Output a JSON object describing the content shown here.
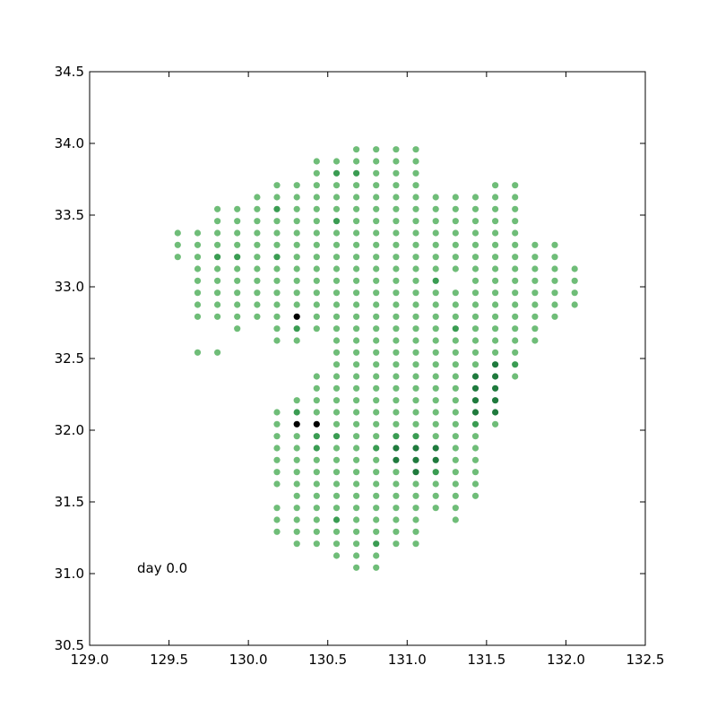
{
  "chart_data": {
    "type": "scatter",
    "title": "",
    "xlabel": "",
    "ylabel": "",
    "xlim": [
      129.0,
      132.5
    ],
    "ylim": [
      30.5,
      34.5
    ],
    "xticks": [
      "129.0",
      "129.5",
      "130.0",
      "130.5",
      "131.0",
      "131.5",
      "132.0",
      "132.5"
    ],
    "yticks": [
      "30.5",
      "31.0",
      "31.5",
      "32.0",
      "32.5",
      "33.0",
      "33.5",
      "34.0",
      "34.5"
    ],
    "grid": false,
    "annotation": "day 0.0",
    "colors": {
      "light": "#6fbd78",
      "medium": "#3a9c52",
      "dark": "#1f7a3d",
      "black": "#000000"
    },
    "columns": [
      {
        "x": 129.555,
        "ys": [
          33.375,
          33.292,
          33.208
        ]
      },
      {
        "x": 129.68,
        "ys": [
          33.375,
          33.292,
          33.208,
          33.125,
          33.042,
          32.958,
          32.875,
          32.792,
          32.542
        ]
      },
      {
        "x": 129.805,
        "ys": [
          33.542,
          33.458,
          33.375,
          33.292,
          33.208,
          33.125,
          33.042,
          32.958,
          32.875,
          32.792,
          32.542
        ]
      },
      {
        "x": 129.93,
        "ys": [
          33.542,
          33.458,
          33.375,
          33.292,
          33.208,
          33.125,
          33.042,
          32.958,
          32.875,
          32.792,
          32.708
        ]
      },
      {
        "x": 130.055,
        "ys": [
          33.625,
          33.542,
          33.458,
          33.375,
          33.292,
          33.208,
          33.125,
          33.042,
          32.958,
          32.875,
          32.792
        ]
      },
      {
        "x": 130.18,
        "ys": [
          33.708,
          33.625,
          33.542,
          33.458,
          33.375,
          33.292,
          33.208,
          33.125,
          33.042,
          32.958,
          32.875,
          32.792,
          32.708,
          32.625,
          32.125,
          32.042,
          31.958,
          31.875,
          31.792,
          31.708,
          31.625,
          31.458,
          31.375,
          31.292
        ]
      },
      {
        "x": 130.305,
        "ys": [
          33.708,
          33.625,
          33.542,
          33.458,
          33.375,
          33.292,
          33.208,
          33.125,
          33.042,
          32.958,
          32.875,
          32.792,
          32.708,
          32.625,
          32.208,
          32.125,
          32.042,
          31.958,
          31.875,
          31.792,
          31.708,
          31.625,
          31.542,
          31.458,
          31.375,
          31.292,
          31.208
        ]
      },
      {
        "x": 130.43,
        "ys": [
          33.875,
          33.792,
          33.708,
          33.625,
          33.542,
          33.458,
          33.375,
          33.292,
          33.208,
          33.125,
          33.042,
          32.958,
          32.875,
          32.792,
          32.708,
          32.375,
          32.292,
          32.208,
          32.125,
          32.042,
          31.958,
          31.875,
          31.792,
          31.708,
          31.625,
          31.542,
          31.458,
          31.375,
          31.292,
          31.208
        ]
      },
      {
        "x": 130.555,
        "ys": [
          33.875,
          33.792,
          33.708,
          33.625,
          33.542,
          33.458,
          33.375,
          33.292,
          33.208,
          33.125,
          33.042,
          32.958,
          32.875,
          32.792,
          32.708,
          32.625,
          32.542,
          32.458,
          32.375,
          32.292,
          32.208,
          32.125,
          32.042,
          31.958,
          31.875,
          31.792,
          31.708,
          31.625,
          31.542,
          31.458,
          31.375,
          31.292,
          31.208,
          31.125
        ]
      },
      {
        "x": 130.68,
        "ys": [
          33.958,
          33.875,
          33.792,
          33.708,
          33.625,
          33.542,
          33.458,
          33.375,
          33.292,
          33.208,
          33.125,
          33.042,
          32.958,
          32.875,
          32.792,
          32.708,
          32.625,
          32.542,
          32.458,
          32.375,
          32.292,
          32.208,
          32.125,
          32.042,
          31.958,
          31.875,
          31.792,
          31.708,
          31.625,
          31.542,
          31.458,
          31.375,
          31.292,
          31.208,
          31.125,
          31.042
        ]
      },
      {
        "x": 130.805,
        "ys": [
          33.958,
          33.875,
          33.792,
          33.708,
          33.625,
          33.542,
          33.458,
          33.375,
          33.292,
          33.208,
          33.125,
          33.042,
          32.958,
          32.875,
          32.792,
          32.708,
          32.625,
          32.542,
          32.458,
          32.375,
          32.292,
          32.208,
          32.125,
          32.042,
          31.958,
          31.875,
          31.792,
          31.708,
          31.625,
          31.542,
          31.458,
          31.375,
          31.292,
          31.208,
          31.125,
          31.042
        ]
      },
      {
        "x": 130.93,
        "ys": [
          33.958,
          33.875,
          33.792,
          33.708,
          33.625,
          33.542,
          33.458,
          33.375,
          33.292,
          33.208,
          33.125,
          33.042,
          32.958,
          32.875,
          32.792,
          32.708,
          32.625,
          32.542,
          32.458,
          32.375,
          32.292,
          32.208,
          32.125,
          32.042,
          31.958,
          31.875,
          31.792,
          31.708,
          31.625,
          31.542,
          31.458,
          31.375,
          31.292,
          31.208
        ]
      },
      {
        "x": 131.055,
        "ys": [
          33.958,
          33.875,
          33.792,
          33.708,
          33.625,
          33.542,
          33.458,
          33.375,
          33.292,
          33.208,
          33.125,
          33.042,
          32.958,
          32.875,
          32.792,
          32.708,
          32.625,
          32.542,
          32.458,
          32.375,
          32.292,
          32.208,
          32.125,
          32.042,
          31.958,
          31.875,
          31.792,
          31.708,
          31.625,
          31.542,
          31.458,
          31.375,
          31.292,
          31.208
        ]
      },
      {
        "x": 131.18,
        "ys": [
          33.625,
          33.542,
          33.458,
          33.375,
          33.292,
          33.208,
          33.125,
          33.042,
          32.958,
          32.875,
          32.792,
          32.708,
          32.625,
          32.542,
          32.458,
          32.375,
          32.292,
          32.208,
          32.125,
          32.042,
          31.958,
          31.875,
          31.792,
          31.708,
          31.625,
          31.542,
          31.458
        ]
      },
      {
        "x": 131.305,
        "ys": [
          33.625,
          33.542,
          33.458,
          33.375,
          33.292,
          33.208,
          33.125,
          32.958,
          32.875,
          32.792,
          32.708,
          32.625,
          32.542,
          32.458,
          32.375,
          32.292,
          32.208,
          32.125,
          32.042,
          31.958,
          31.875,
          31.792,
          31.708,
          31.625,
          31.542,
          31.458,
          31.375
        ]
      },
      {
        "x": 131.43,
        "ys": [
          33.625,
          33.542,
          33.458,
          33.375,
          33.292,
          33.208,
          33.125,
          33.042,
          32.958,
          32.875,
          32.792,
          32.708,
          32.625,
          32.542,
          32.458,
          32.375,
          32.292,
          32.208,
          32.125,
          32.042,
          31.958,
          31.875,
          31.792,
          31.708,
          31.625,
          31.542
        ]
      },
      {
        "x": 131.555,
        "ys": [
          33.708,
          33.625,
          33.542,
          33.458,
          33.375,
          33.292,
          33.208,
          33.125,
          33.042,
          32.958,
          32.875,
          32.792,
          32.708,
          32.625,
          32.542,
          32.458,
          32.375,
          32.292,
          32.208,
          32.125,
          32.042
        ]
      },
      {
        "x": 131.68,
        "ys": [
          33.708,
          33.625,
          33.542,
          33.458,
          33.375,
          33.292,
          33.208,
          33.125,
          33.042,
          32.958,
          32.875,
          32.792,
          32.708,
          32.625,
          32.542,
          32.458,
          32.375
        ]
      },
      {
        "x": 131.805,
        "ys": [
          33.292,
          33.208,
          33.125,
          33.042,
          32.958,
          32.875,
          32.792,
          32.708,
          32.625
        ]
      },
      {
        "x": 131.93,
        "ys": [
          33.292,
          33.208,
          33.125,
          33.042,
          32.958,
          32.875,
          32.792
        ]
      },
      {
        "x": 132.055,
        "ys": [
          33.125,
          33.042,
          32.958,
          32.875
        ]
      }
    ],
    "highlight_points": [
      {
        "x": 130.305,
        "y": 32.792,
        "level": "black"
      },
      {
        "x": 130.305,
        "y": 32.042,
        "level": "black"
      },
      {
        "x": 130.43,
        "y": 32.042,
        "level": "black"
      },
      {
        "x": 130.93,
        "y": 31.875,
        "level": "dark"
      },
      {
        "x": 130.93,
        "y": 31.792,
        "level": "dark"
      },
      {
        "x": 131.055,
        "y": 31.875,
        "level": "dark"
      },
      {
        "x": 131.055,
        "y": 31.792,
        "level": "dark"
      },
      {
        "x": 131.055,
        "y": 31.708,
        "level": "dark"
      },
      {
        "x": 131.18,
        "y": 31.875,
        "level": "dark"
      },
      {
        "x": 131.18,
        "y": 31.792,
        "level": "dark"
      },
      {
        "x": 131.43,
        "y": 32.375,
        "level": "dark"
      },
      {
        "x": 131.43,
        "y": 32.292,
        "level": "dark"
      },
      {
        "x": 131.43,
        "y": 32.208,
        "level": "dark"
      },
      {
        "x": 131.43,
        "y": 32.125,
        "level": "dark"
      },
      {
        "x": 131.555,
        "y": 32.458,
        "level": "dark"
      },
      {
        "x": 131.555,
        "y": 32.375,
        "level": "dark"
      },
      {
        "x": 131.555,
        "y": 32.292,
        "level": "dark"
      },
      {
        "x": 131.555,
        "y": 32.208,
        "level": "dark"
      },
      {
        "x": 131.555,
        "y": 32.125,
        "level": "dark"
      },
      {
        "x": 130.305,
        "y": 32.708,
        "level": "medium"
      },
      {
        "x": 130.305,
        "y": 32.125,
        "level": "medium"
      },
      {
        "x": 130.43,
        "y": 31.958,
        "level": "medium"
      },
      {
        "x": 130.43,
        "y": 31.875,
        "level": "medium"
      },
      {
        "x": 130.555,
        "y": 31.958,
        "level": "medium"
      },
      {
        "x": 130.805,
        "y": 31.875,
        "level": "medium"
      },
      {
        "x": 130.93,
        "y": 31.958,
        "level": "medium"
      },
      {
        "x": 131.055,
        "y": 31.958,
        "level": "medium"
      },
      {
        "x": 131.18,
        "y": 31.708,
        "level": "medium"
      },
      {
        "x": 131.18,
        "y": 33.042,
        "level": "medium"
      },
      {
        "x": 130.555,
        "y": 33.792,
        "level": "medium"
      },
      {
        "x": 130.68,
        "y": 33.792,
        "level": "medium"
      },
      {
        "x": 130.555,
        "y": 33.458,
        "level": "medium"
      },
      {
        "x": 129.805,
        "y": 33.208,
        "level": "medium"
      },
      {
        "x": 129.93,
        "y": 33.208,
        "level": "medium"
      },
      {
        "x": 130.18,
        "y": 33.208,
        "level": "medium"
      },
      {
        "x": 130.18,
        "y": 33.542,
        "level": "medium"
      },
      {
        "x": 131.305,
        "y": 32.708,
        "level": "medium"
      },
      {
        "x": 131.43,
        "y": 32.042,
        "level": "medium"
      },
      {
        "x": 131.68,
        "y": 32.458,
        "level": "medium"
      },
      {
        "x": 130.555,
        "y": 31.375,
        "level": "medium"
      },
      {
        "x": 130.805,
        "y": 31.208,
        "level": "medium"
      }
    ]
  }
}
